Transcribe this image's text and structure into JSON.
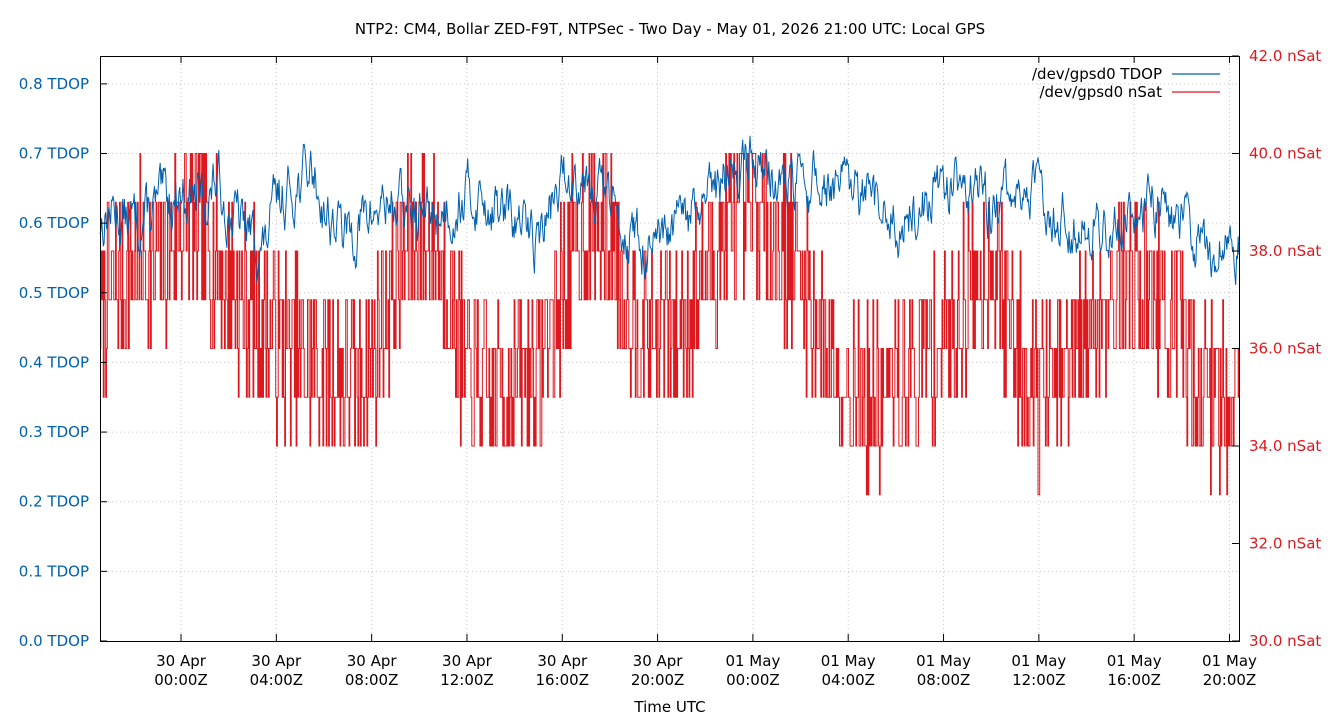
{
  "chart_data": {
    "type": "line",
    "title": "NTP2: CM4, Bollar ZED-F9T, NTPSec - Two Day - May 01, 2026 21:00 UTC: Local GPS",
    "xlabel": "Time UTC",
    "grid": true,
    "legend_position": "top-right",
    "colors": {
      "tdop": "#0060ad",
      "nsat": "#dd181f",
      "axis_left_text": "#0060ad",
      "axis_right_text": "#dd181f"
    },
    "x_range_hours": [
      -3.4,
      44.4
    ],
    "x_ticks": [
      {
        "hour": 0,
        "line1": "30 Apr",
        "line2": "00:00Z"
      },
      {
        "hour": 4,
        "line1": "30 Apr",
        "line2": "04:00Z"
      },
      {
        "hour": 8,
        "line1": "30 Apr",
        "line2": "08:00Z"
      },
      {
        "hour": 12,
        "line1": "30 Apr",
        "line2": "12:00Z"
      },
      {
        "hour": 16,
        "line1": "30 Apr",
        "line2": "16:00Z"
      },
      {
        "hour": 20,
        "line1": "30 Apr",
        "line2": "20:00Z"
      },
      {
        "hour": 24,
        "line1": "01 May",
        "line2": "00:00Z"
      },
      {
        "hour": 28,
        "line1": "01 May",
        "line2": "04:00Z"
      },
      {
        "hour": 32,
        "line1": "01 May",
        "line2": "08:00Z"
      },
      {
        "hour": 36,
        "line1": "01 May",
        "line2": "12:00Z"
      },
      {
        "hour": 40,
        "line1": "01 May",
        "line2": "16:00Z"
      },
      {
        "hour": 44,
        "line1": "01 May",
        "line2": "20:00Z"
      }
    ],
    "y_left": {
      "range": [
        0,
        0.84
      ],
      "ticks": [
        {
          "v": 0.0,
          "label": "0.0 TDOP"
        },
        {
          "v": 0.1,
          "label": "0.1 TDOP"
        },
        {
          "v": 0.2,
          "label": "0.2 TDOP"
        },
        {
          "v": 0.3,
          "label": "0.3 TDOP"
        },
        {
          "v": 0.4,
          "label": "0.4 TDOP"
        },
        {
          "v": 0.5,
          "label": "0.5 TDOP"
        },
        {
          "v": 0.6,
          "label": "0.6 TDOP"
        },
        {
          "v": 0.7,
          "label": "0.7 TDOP"
        },
        {
          "v": 0.8,
          "label": "0.8 TDOP"
        }
      ]
    },
    "y_right": {
      "range": [
        30,
        42
      ],
      "ticks": [
        {
          "v": 30,
          "label": "30.0 nSat"
        },
        {
          "v": 32,
          "label": "32.0 nSat"
        },
        {
          "v": 34,
          "label": "34.0 nSat"
        },
        {
          "v": 36,
          "label": "36.0 nSat"
        },
        {
          "v": 38,
          "label": "38.0 nSat"
        },
        {
          "v": 40,
          "label": "40.0 nSat"
        },
        {
          "v": 42,
          "label": "42.0 nSat"
        }
      ]
    },
    "series": [
      {
        "name": "/dev/gpsd0 TDOP",
        "axis": "left",
        "color": "#0060ad",
        "points": [
          [
            -3.4,
            0.6
          ],
          [
            -3,
            0.62
          ],
          [
            -2,
            0.6
          ],
          [
            -1,
            0.62
          ],
          [
            0,
            0.65
          ],
          [
            1,
            0.63
          ],
          [
            1.5,
            0.66
          ],
          [
            2,
            0.62
          ],
          [
            3,
            0.58
          ],
          [
            3.5,
            0.56
          ],
          [
            4,
            0.63
          ],
          [
            5,
            0.66
          ],
          [
            5.5,
            0.68
          ],
          [
            6,
            0.62
          ],
          [
            7,
            0.58
          ],
          [
            7.5,
            0.6
          ],
          [
            8,
            0.61
          ],
          [
            8.5,
            0.63
          ],
          [
            9,
            0.63
          ],
          [
            10,
            0.61
          ],
          [
            11,
            0.62
          ],
          [
            12,
            0.64
          ],
          [
            13,
            0.63
          ],
          [
            14,
            0.6
          ],
          [
            15,
            0.58
          ],
          [
            16,
            0.66
          ],
          [
            17,
            0.68
          ],
          [
            18,
            0.63
          ],
          [
            19,
            0.58
          ],
          [
            20,
            0.55
          ],
          [
            21,
            0.6
          ],
          [
            22,
            0.62
          ],
          [
            23,
            0.67
          ],
          [
            24,
            0.7
          ],
          [
            25,
            0.66
          ],
          [
            26,
            0.65
          ],
          [
            27,
            0.66
          ],
          [
            28,
            0.64
          ],
          [
            29,
            0.62
          ],
          [
            30,
            0.6
          ],
          [
            31,
            0.62
          ],
          [
            32,
            0.66
          ],
          [
            33,
            0.66
          ],
          [
            34,
            0.62
          ],
          [
            35,
            0.64
          ],
          [
            36,
            0.64
          ],
          [
            37,
            0.61
          ],
          [
            38,
            0.6
          ],
          [
            39,
            0.59
          ],
          [
            40,
            0.62
          ],
          [
            41,
            0.63
          ],
          [
            42,
            0.61
          ],
          [
            43,
            0.56
          ],
          [
            44,
            0.57
          ],
          [
            44.4,
            0.58
          ]
        ]
      },
      {
        "name": "/dev/gpsd0 nSat",
        "axis": "right",
        "color": "#dd181f",
        "points": [
          [
            -3.4,
            36.8
          ],
          [
            -3,
            37.2
          ],
          [
            -2,
            37.8
          ],
          [
            -1,
            37.6
          ],
          [
            0,
            38.6
          ],
          [
            1,
            38.2
          ],
          [
            2,
            37.4
          ],
          [
            3,
            36.8
          ],
          [
            4,
            36.2
          ],
          [
            5,
            35.8
          ],
          [
            6,
            35.6
          ],
          [
            7,
            35.4
          ],
          [
            8,
            35.8
          ],
          [
            9,
            37.6
          ],
          [
            10,
            38.4
          ],
          [
            11,
            37.8
          ],
          [
            12,
            35.4
          ],
          [
            13,
            35.0
          ],
          [
            14,
            35.4
          ],
          [
            15,
            35.6
          ],
          [
            16,
            37.2
          ],
          [
            17,
            38.6
          ],
          [
            18,
            38.2
          ],
          [
            19,
            36.8
          ],
          [
            20,
            36.4
          ],
          [
            21,
            36.6
          ],
          [
            22,
            37.6
          ],
          [
            23,
            38.4
          ],
          [
            24,
            38.6
          ],
          [
            25,
            38.2
          ],
          [
            26,
            37.6
          ],
          [
            27,
            36.0
          ],
          [
            28,
            35.4
          ],
          [
            29,
            34.8
          ],
          [
            30,
            35.2
          ],
          [
            31,
            35.6
          ],
          [
            32,
            36.2
          ],
          [
            33,
            37.2
          ],
          [
            34,
            37.8
          ],
          [
            35,
            36.2
          ],
          [
            36,
            35.2
          ],
          [
            37,
            35.4
          ],
          [
            38,
            36.2
          ],
          [
            39,
            37.2
          ],
          [
            40,
            37.6
          ],
          [
            41,
            37.0
          ],
          [
            42,
            36.0
          ],
          [
            43,
            35.2
          ],
          [
            44,
            35.0
          ],
          [
            44.4,
            35.6
          ]
        ]
      }
    ]
  }
}
